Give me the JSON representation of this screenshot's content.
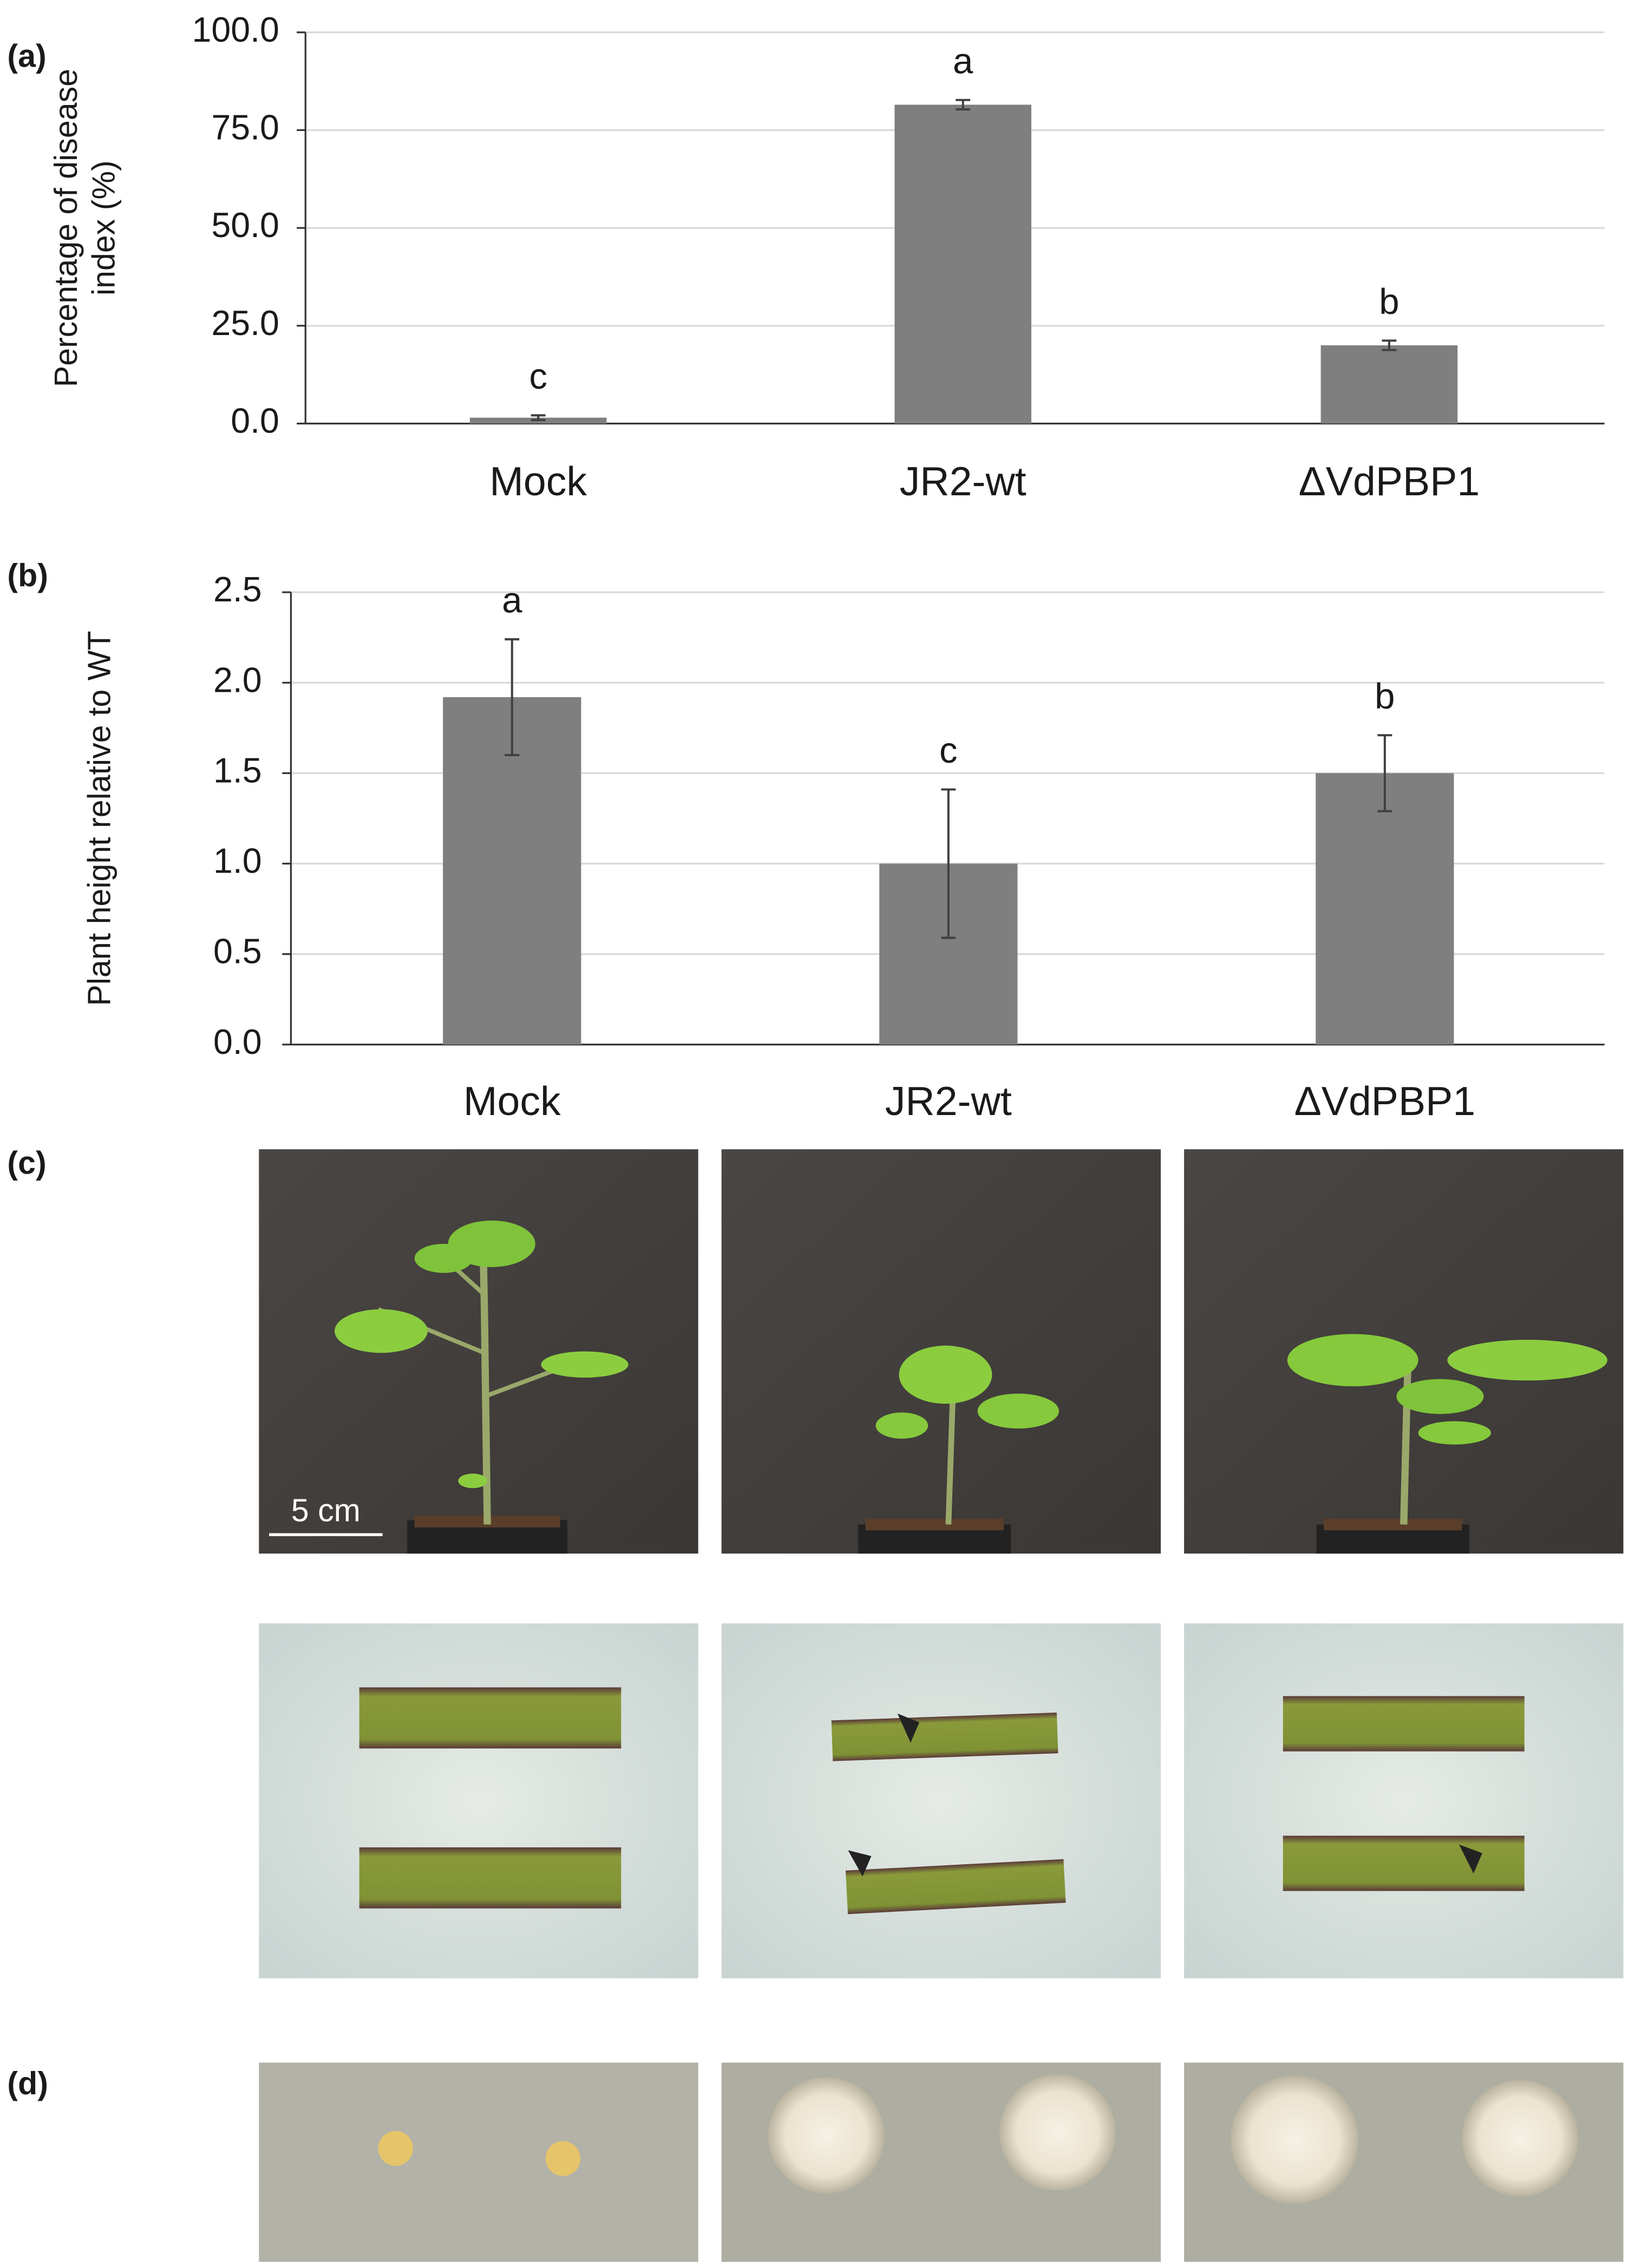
{
  "chart_data": [
    {
      "type": "bar",
      "panel_label": "(a)",
      "y_label": [
        "Percentage of disease",
        "index (%)"
      ],
      "categories": [
        "Mock",
        "JR2-wt",
        "ΔVdPBP1"
      ],
      "values": [
        1.5,
        81.5,
        20
      ],
      "errors": [
        0.6,
        1.2,
        1.2
      ],
      "annotations": [
        "c",
        "a",
        "b"
      ],
      "color": "#7f7f7f",
      "ylim": [
        0,
        100
      ],
      "yticks": [
        {
          "value": 0,
          "label": "0.0"
        },
        {
          "value": 25,
          "label": "25.0"
        },
        {
          "value": 50,
          "label": "50.0"
        },
        {
          "value": 75,
          "label": "75.0"
        },
        {
          "value": 100,
          "label": "100.0"
        }
      ],
      "grid": true
    },
    {
      "type": "bar",
      "panel_label": "(b)",
      "y_label": [
        "Plant height relative to WT"
      ],
      "categories": [
        "Mock",
        "JR2-wt",
        "ΔVdPBP1"
      ],
      "values": [
        1.92,
        1.0,
        1.5
      ],
      "errors": [
        0.32,
        0.41,
        0.21
      ],
      "annotations": [
        "a",
        "c",
        "b"
      ],
      "color": "#7f7f7f",
      "ylim": [
        0,
        2.5
      ],
      "yticks": [
        {
          "value": 0,
          "label": "0.0"
        },
        {
          "value": 0.5,
          "label": "0.5"
        },
        {
          "value": 1,
          "label": "1.0"
        },
        {
          "value": 1.5,
          "label": "1.5"
        },
        {
          "value": 2,
          "label": "2.0"
        },
        {
          "value": 2.5,
          "label": "2.5"
        }
      ],
      "grid": true
    }
  ],
  "panels": [
    {
      "label": "(c)"
    },
    {
      "label": "(d)"
    }
  ],
  "scale_bar": "5 cm"
}
